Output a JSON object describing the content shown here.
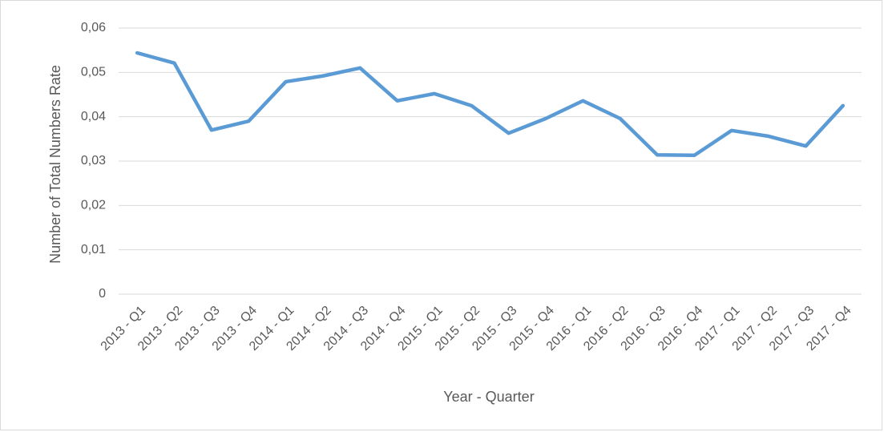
{
  "chart_data": {
    "type": "line",
    "x_label": "Year - Quarter",
    "y_label": "Number of Total Numbers Rate",
    "categories": [
      "2013 - Q1",
      "2013 - Q2",
      "2013 - Q3",
      "2013 - Q4",
      "2014 - Q1",
      "2014 - Q2",
      "2014 - Q3",
      "2014 - Q4",
      "2015 - Q1",
      "2015 - Q2",
      "2015 - Q3",
      "2015 - Q4",
      "2016 - Q1",
      "2016 - Q2",
      "2016 - Q3",
      "2016 - Q4",
      "2017 - Q1",
      "2017 - Q2",
      "2017 - Q3",
      "2017 - Q4"
    ],
    "values": [
      0.0544,
      0.0521,
      0.037,
      0.039,
      0.0479,
      0.0492,
      0.051,
      0.0436,
      0.0452,
      0.0425,
      0.0363,
      0.0396,
      0.0436,
      0.0396,
      0.0314,
      0.0313,
      0.0369,
      0.0356,
      0.0334,
      0.0425
    ],
    "color": "#5b9bd5",
    "ylim": [
      0,
      0.06
    ],
    "yticks": [
      0,
      {
        "value": 0.01,
        "label": "0,01"
      },
      {
        "value": 0.02,
        "label": "0,02"
      },
      {
        "value": 0.03,
        "label": "0,03"
      },
      {
        "value": 0.04,
        "label": "0,04"
      },
      {
        "value": 0.05,
        "label": "0,05"
      },
      {
        "value": 0.06,
        "label": "0,06"
      }
    ],
    "grid": true
  }
}
